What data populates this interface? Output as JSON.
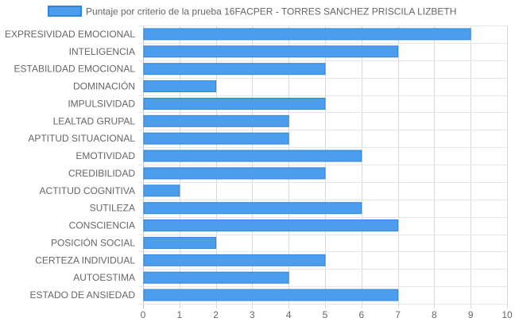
{
  "chart_data": {
    "type": "bar",
    "orientation": "horizontal",
    "categories": [
      "EXPRESIVIDAD EMOCIONAL",
      "INTELIGENCIA",
      "ESTABILIDAD EMOCIONAL",
      "DOMINACIÓN",
      "IMPULSIVIDAD",
      "LEALTAD GRUPAL",
      "APTITUD SITUACIONAL",
      "EMOTIVIDAD",
      "CREDIBILIDAD",
      "ACTITUD COGNITIVA",
      "SUTILEZA",
      "CONSCIENCIA",
      "POSICIÓN SOCIAL",
      "CERTEZA INDIVIDUAL",
      "AUTOESTIMA",
      "ESTADO DE ANSIEDAD"
    ],
    "series": [
      {
        "name": "Puntaje por criterio de la prueba 16FACPER - TORRES SANCHEZ PRISCILA LIZBETH",
        "values": [
          9,
          7,
          5,
          2,
          5,
          4,
          4,
          6,
          5,
          1,
          6,
          7,
          2,
          5,
          4,
          7
        ],
        "color": "#4d9ded",
        "border_color": "#2f86df"
      }
    ],
    "x_ticks": [
      "0",
      "1",
      "2",
      "3",
      "4",
      "5",
      "6",
      "7",
      "8",
      "9",
      "10"
    ],
    "xlim": [
      0,
      10
    ],
    "grid": true,
    "legend_position": "top"
  }
}
